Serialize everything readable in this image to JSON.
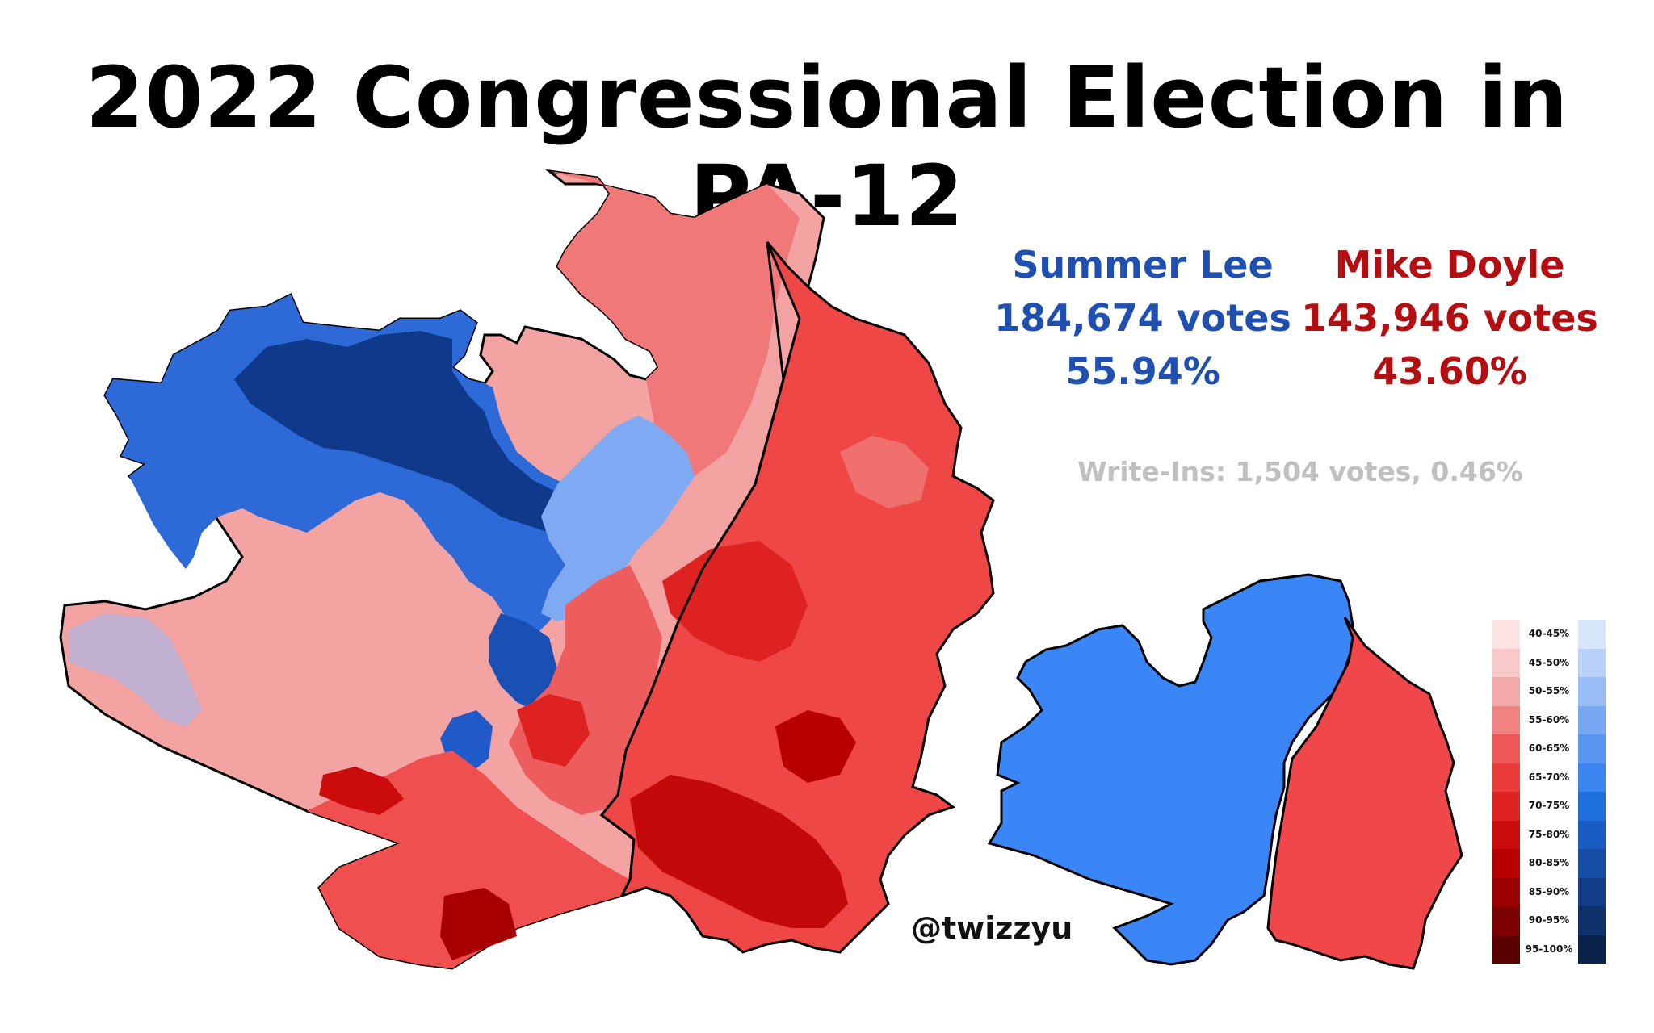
{
  "title": "2022 Congressional Election in PA-12",
  "candidates": {
    "lee": {
      "name": "Summer Lee",
      "votes": "184,674 votes",
      "pct": "55.94%",
      "color": "#1f4fb0"
    },
    "doyle": {
      "name": "Mike Doyle",
      "votes": "143,946 votes",
      "pct": "43.60%",
      "color": "#b30f12"
    }
  },
  "write_ins": "Write-Ins: 1,504 votes, 0.46%",
  "credit": "@twizzyu",
  "legend": {
    "ranges": [
      "40-45%",
      "45-50%",
      "50-55%",
      "55-60%",
      "60-65%",
      "65-70%",
      "70-75%",
      "75-80%",
      "80-85%",
      "85-90%",
      "90-95%",
      "95-100%"
    ],
    "red_colors": [
      "#fbe3e3",
      "#f8c9c9",
      "#f5aaaa",
      "#f28282",
      "#ef5757",
      "#ec3b3b",
      "#de2222",
      "#cc0c0c",
      "#b80000",
      "#9c0000",
      "#7d0000",
      "#5a0000"
    ],
    "blue_colors": [
      "#d7e5fb",
      "#b8d1f8",
      "#98bcf6",
      "#78a8f4",
      "#5896f2",
      "#3b85f0",
      "#1f6fdc",
      "#1a5dc2",
      "#164ea6",
      "#123f88",
      "#0e316a",
      "#0a234d"
    ]
  },
  "map_colors": {
    "lee_strong": "#0f3a8c",
    "lee_mid": "#2d6ad8",
    "lee_light": "#7fa9f2",
    "doyle_light": "#f4a3a3",
    "doyle_mid": "#ef4f4f",
    "doyle_strong": "#cc0c0c",
    "inset_lee": "#3a86f6",
    "inset_doyle": "#f0474a"
  }
}
